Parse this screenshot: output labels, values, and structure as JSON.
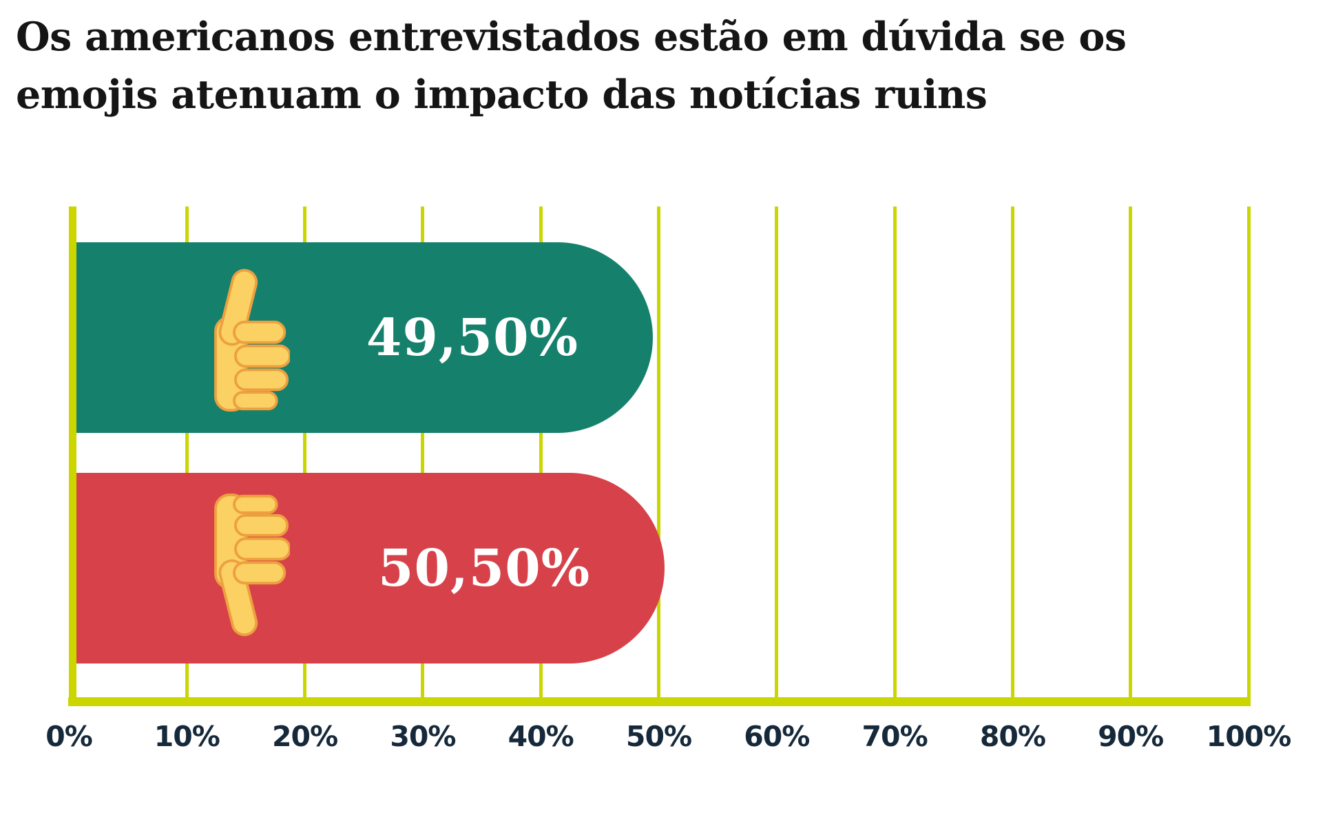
{
  "title": {
    "lines": [
      "Os americanos entrevistados estão em dúvida se os",
      "emojis atenuam o impacto das notícias ruins"
    ]
  },
  "chart_data": {
    "type": "bar",
    "orientation": "horizontal",
    "title": "Os americanos entrevistados estão em dúvida se os emojis atenuam o impacto das notícias ruins",
    "categories": [
      "thumbs-up",
      "thumbs-down"
    ],
    "series": [
      {
        "category_icon": "thumbs-up-emoji",
        "value": 49.5,
        "label": "49,50%",
        "color": "#15816C"
      },
      {
        "category_icon": "thumbs-down-emoji",
        "value": 50.5,
        "label": "50,50%",
        "color": "#D7424A"
      }
    ],
    "x_ticks": [
      "0%",
      "10%",
      "20%",
      "30%",
      "40%",
      "50%",
      "60%",
      "70%",
      "80%",
      "90%",
      "100%"
    ],
    "xlim": [
      0,
      100
    ],
    "grid": true,
    "legend": false
  },
  "colors": {
    "background": "#FFFFFF",
    "grid": "#CBD500",
    "tick_label": "#16293B",
    "title": "#151515",
    "value_label": "#FFFFFF",
    "emoji_yellow": "#FBD163",
    "emoji_shade": "#EDA03F"
  }
}
